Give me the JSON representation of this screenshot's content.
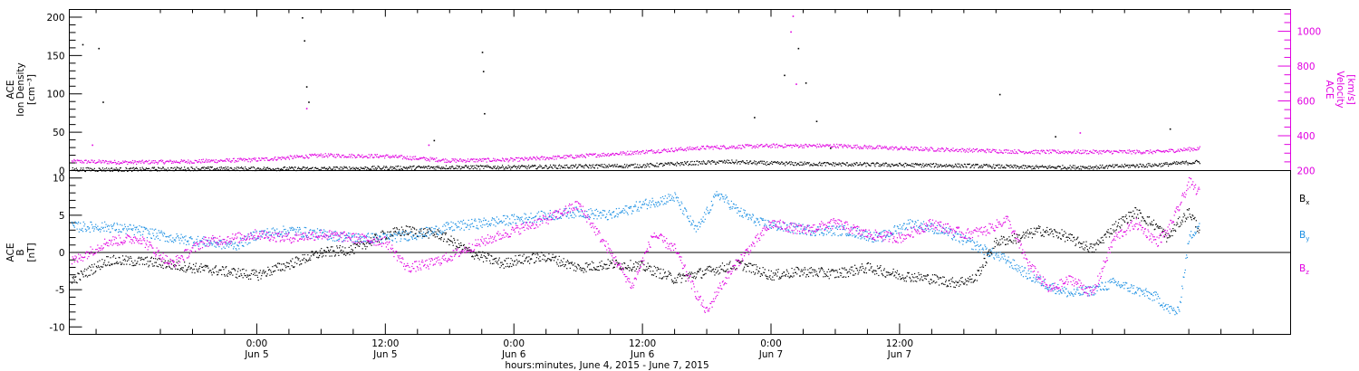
{
  "colors": {
    "black": "#000000",
    "magenta": "#e100e1",
    "blue": "#1a8fe3"
  },
  "chart_data": [
    {
      "type": "scatter",
      "panel": "plasma",
      "ylabel": [
        "ACE",
        "Ion Density",
        "[cm⁻³]"
      ],
      "ylabel_right": [
        "ACE",
        "Velocity",
        "[km/s]"
      ],
      "ylim": [
        0,
        210
      ],
      "yticks": [
        0,
        50,
        100,
        150,
        200
      ],
      "ylim_right": [
        200,
        1125
      ],
      "yticks_right": [
        200,
        400,
        600,
        800,
        1000
      ],
      "grid": false,
      "series": [
        {
          "axis": "left",
          "color": "black",
          "x": [
            -17,
            -12,
            -6,
            0,
            6,
            12,
            18,
            24,
            30,
            36,
            40,
            44,
            48,
            54,
            60,
            66,
            72,
            78,
            84,
            88
          ],
          "y": [
            2,
            2,
            3,
            3,
            3,
            4,
            5,
            5,
            6,
            7,
            10,
            12,
            10,
            9,
            8,
            7,
            5,
            5,
            8,
            12
          ],
          "spikes_x": [
            -16.3,
            -14.8,
            -14.4,
            4.2,
            4.4,
            4.6,
            4.8,
            16.5,
            21.0,
            21.1,
            21.2,
            46.4,
            49.2,
            50.5,
            51.2,
            52.2,
            53.5,
            69.3,
            74.5,
            85.2
          ],
          "spikes_y": [
            165,
            160,
            90,
            200,
            170,
            110,
            90,
            40,
            155,
            130,
            75,
            70,
            125,
            160,
            115,
            65,
            30,
            100,
            45,
            55
          ]
        },
        {
          "axis": "right",
          "color": "magenta",
          "x": [
            -17,
            -12,
            -6,
            0,
            6,
            12,
            18,
            24,
            30,
            36,
            42,
            48,
            54,
            60,
            66,
            72,
            78,
            84,
            88
          ],
          "y": [
            255,
            250,
            255,
            265,
            290,
            285,
            260,
            265,
            285,
            310,
            335,
            345,
            345,
            330,
            320,
            310,
            310,
            310,
            330
          ],
          "spikes_x": [
            -15.4,
            4.6,
            16.0,
            49.8,
            50.0,
            50.3,
            76.8
          ],
          "spikes_y": [
            350,
            560,
            350,
            1000,
            1090,
            700,
            420
          ]
        }
      ]
    },
    {
      "type": "scatter",
      "panel": "imf",
      "ylabel": [
        "ACE",
        "B",
        "[nT]"
      ],
      "ylim": [
        -11,
        11
      ],
      "yticks": [
        -10,
        -5,
        0,
        5,
        10
      ],
      "zero_line": 0,
      "grid": false,
      "legend_position": "right",
      "series": [
        {
          "name": "Bx",
          "label_main": "B",
          "label_sub": "x",
          "color": "black",
          "x": [
            -17,
            -14,
            -10,
            -6,
            -3,
            0,
            3,
            6,
            9,
            12,
            14,
            17,
            20,
            23,
            24,
            27,
            30,
            33,
            36,
            39,
            42,
            45,
            48,
            51,
            54,
            57,
            60,
            63,
            65,
            67,
            69,
            71,
            73,
            75,
            78,
            80,
            82,
            84,
            85,
            86,
            87,
            88
          ],
          "y": [
            -3.5,
            -1.0,
            -1.2,
            -2.0,
            -2.5,
            -3.0,
            -1.5,
            0.0,
            0.5,
            2.5,
            3.0,
            2.5,
            0.0,
            -1.5,
            -1.0,
            -0.5,
            -2.0,
            -1.5,
            -1.8,
            -3.5,
            -2.5,
            -1.5,
            -3.0,
            -2.5,
            -2.8,
            -2.0,
            -3.0,
            -3.5,
            -4.0,
            -3.5,
            1.5,
            2.0,
            3.0,
            2.5,
            0.5,
            3.5,
            5.5,
            3.5,
            2.0,
            4.0,
            5.5,
            3.0
          ]
        },
        {
          "name": "By",
          "label_main": "B",
          "label_sub": "y",
          "color": "blue",
          "x": [
            -17,
            -14,
            -11,
            -8,
            -5,
            -2,
            0,
            3,
            6,
            9,
            12,
            15,
            18,
            21,
            24,
            27,
            30,
            33,
            36,
            39,
            41,
            43,
            45,
            47,
            49,
            52,
            55,
            58,
            61,
            64,
            67,
            70,
            72,
            74,
            76,
            78,
            80,
            82,
            84,
            85,
            86,
            87,
            88
          ],
          "y": [
            3.5,
            3.5,
            3.0,
            2.0,
            1.5,
            1.0,
            2.5,
            3.0,
            2.5,
            2.0,
            2.0,
            2.5,
            3.5,
            4.0,
            4.5,
            5.0,
            5.5,
            5.0,
            6.5,
            7.5,
            3.0,
            8.0,
            5.5,
            4.0,
            3.5,
            3.0,
            3.0,
            2.0,
            4.0,
            3.0,
            1.0,
            -1.0,
            -3.0,
            -4.5,
            -5.5,
            -5.0,
            -4.0,
            -5.0,
            -6.0,
            -7.5,
            -8.0,
            2.0,
            4.0
          ]
        },
        {
          "name": "Bz",
          "label_main": "B",
          "label_sub": "z",
          "color": "magenta",
          "x": [
            -17,
            -14,
            -11,
            -8,
            -5,
            -2,
            0,
            3,
            6,
            9,
            12,
            14,
            16,
            18,
            21,
            24,
            27,
            30,
            33,
            35,
            37,
            39,
            41,
            42,
            43,
            45,
            48,
            51,
            54,
            57,
            60,
            63,
            66,
            68,
            70,
            72,
            74,
            76,
            78,
            80,
            82,
            84,
            85,
            86,
            87,
            88
          ],
          "y": [
            -1.0,
            1.5,
            2.0,
            -1.5,
            1.5,
            2.0,
            2.5,
            2.0,
            2.5,
            2.0,
            1.5,
            -2.0,
            -1.5,
            -0.5,
            1.5,
            3.0,
            4.5,
            6.5,
            0.0,
            -4.5,
            2.5,
            0.5,
            -5.5,
            -8.0,
            -5.0,
            -1.0,
            4.0,
            3.0,
            4.0,
            2.5,
            2.0,
            4.0,
            2.5,
            3.0,
            4.5,
            -1.5,
            -5.0,
            -3.5,
            -5.5,
            2.0,
            4.0,
            1.5,
            3.0,
            6.0,
            9.5,
            8.0
          ]
        }
      ]
    }
  ],
  "xaxis": {
    "xlim": [
      -17.5,
      96.5
    ],
    "major_ticks": [
      {
        "x": 0,
        "time": "0:00",
        "date": "Jun 5"
      },
      {
        "x": 12,
        "time": "12:00",
        "date": "Jun 5"
      },
      {
        "x": 24,
        "time": "0:00",
        "date": "Jun 6"
      },
      {
        "x": 36,
        "time": "12:00",
        "date": "Jun 6"
      },
      {
        "x": 48,
        "time": "0:00",
        "date": "Jun 7"
      },
      {
        "x": 60,
        "time": "12:00",
        "date": "Jun 7"
      }
    ],
    "title": "hours:minutes, June  4, 2015 - June  7, 2015"
  }
}
